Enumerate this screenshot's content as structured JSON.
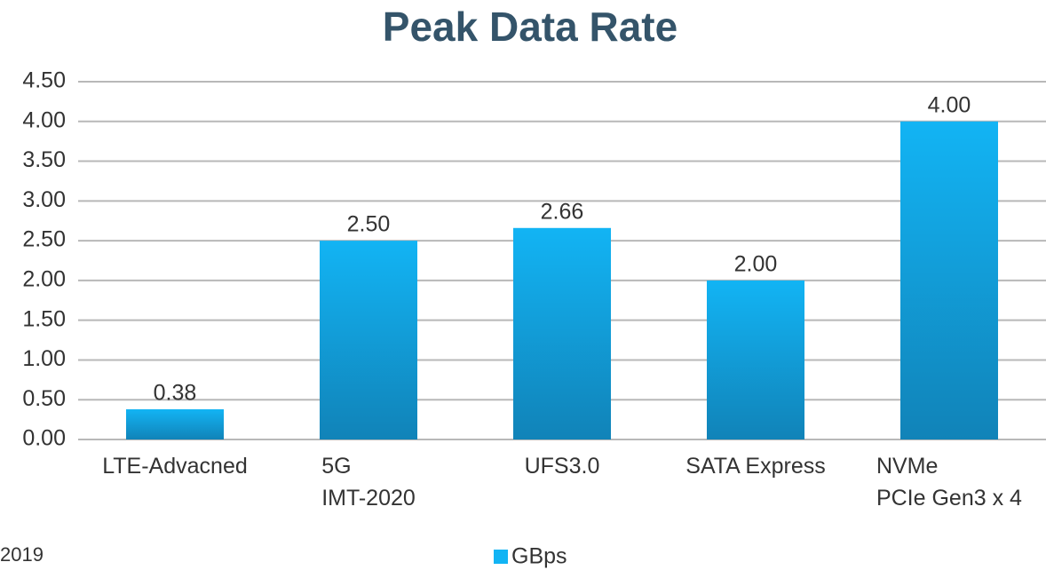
{
  "chart_data": {
    "type": "bar",
    "title": "Peak Data Rate",
    "categories": [
      "LTE-Advacned",
      "5G\nIMT-2020",
      "UFS3.0",
      "SATA Express",
      "NVMe\nPCIe Gen3 x 4"
    ],
    "series": [
      {
        "name": "GBps",
        "color": "#12b4f4",
        "values": [
          0.38,
          2.5,
          2.66,
          2.0,
          4.0
        ],
        "value_labels": [
          "0.38",
          "2.50",
          "2.66",
          "2.00",
          "4.00"
        ]
      }
    ],
    "ylim": [
      0,
      4.5
    ],
    "yticks": [
      {
        "value": 0,
        "label": "0.00"
      },
      {
        "value": 0.5,
        "label": "0.50"
      },
      {
        "value": 1,
        "label": "1.00"
      },
      {
        "value": 1.5,
        "label": "1.50"
      },
      {
        "value": 2,
        "label": "2.00"
      },
      {
        "value": 2.5,
        "label": "2.50"
      },
      {
        "value": 3,
        "label": "3.00"
      },
      {
        "value": 3.5,
        "label": "3.50"
      },
      {
        "value": 4,
        "label": "4.00"
      },
      {
        "value": 4.5,
        "label": "4.50"
      }
    ],
    "grid": true,
    "legend": "bottom",
    "footnote": "2019"
  }
}
